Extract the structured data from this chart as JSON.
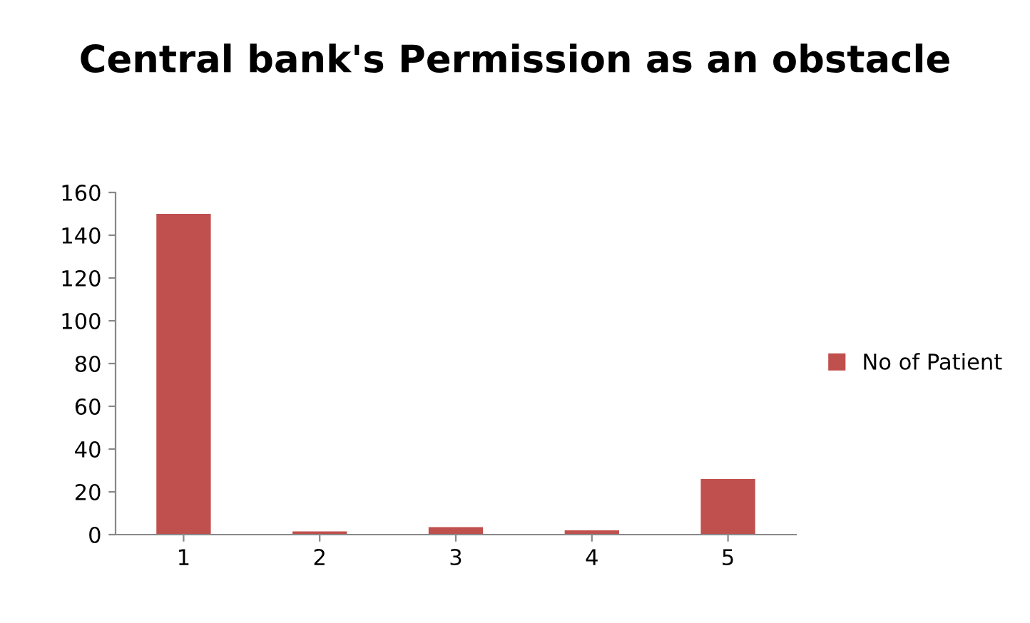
{
  "chart_data": {
    "type": "bar",
    "title": "Central bank's Permission as an obstacle",
    "categories": [
      "1",
      "2",
      "3",
      "4",
      "5"
    ],
    "series": [
      {
        "name": "No of Patient",
        "color": "#c0504d",
        "values": [
          150,
          1.5,
          3.5,
          2,
          26
        ]
      }
    ],
    "ylim": [
      0,
      160
    ],
    "yticks": [
      0,
      20,
      40,
      60,
      80,
      100,
      120,
      140,
      160
    ],
    "grid": false,
    "legend": "right"
  }
}
